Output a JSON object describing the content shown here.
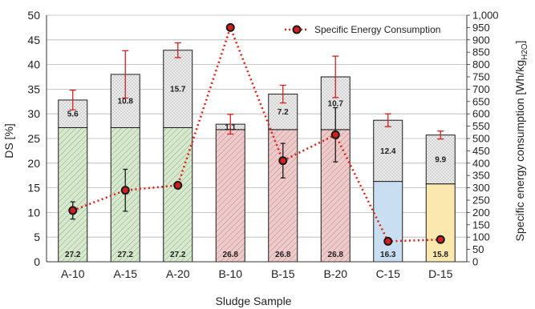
{
  "chart_data": {
    "type": "bar",
    "categories": [
      "A-10",
      "A-15",
      "A-20",
      "B-10",
      "B-15",
      "B-20",
      "C-15",
      "D-15"
    ],
    "series": [
      {
        "values": [
          27.2,
          27.2,
          27.2,
          26.8,
          26.8,
          26.8,
          16.3,
          15.8
        ],
        "labels": [
          "27.2",
          "27.2",
          "27.2",
          "26.8",
          "26.8",
          "26.8",
          "16.3",
          "15.8"
        ],
        "colors": [
          "#d5eacb",
          "#d5eacb",
          "#d5eacb",
          "#f2c9c9",
          "#f2c9c9",
          "#f2c9c9",
          "#c9dff1",
          "#fbe8ae"
        ]
      },
      {
        "values": [
          5.6,
          10.8,
          15.7,
          1.1,
          7.2,
          10.7,
          12.4,
          9.9
        ],
        "labels": [
          "5.6",
          "10.8",
          "15.7",
          "1.1",
          "7.2",
          "10.7",
          "12.4",
          "9.9"
        ],
        "color": "#ececec",
        "error_plus": [
          2.0,
          4.8,
          1.5,
          2.0,
          1.8,
          4.2,
          1.3,
          0.8
        ],
        "error_minus": [
          2.0,
          4.8,
          1.5,
          2.0,
          1.8,
          4.2,
          1.3,
          0.8
        ]
      }
    ],
    "line_series": {
      "name": "Specific Energy Consumption",
      "axis": "right",
      "values": [
        208,
        290,
        310,
        950,
        410,
        515,
        83,
        90
      ],
      "error": [
        35,
        85,
        0,
        0,
        70,
        110,
        0,
        0
      ],
      "color": "#e32219"
    },
    "xlabel": "Sludge Sample",
    "ylabel": "DS [%]",
    "y2label": "Specific energy consumption [Wh/kg",
    "y2label_sub": "H2O",
    "y2label_end": "]",
    "ylim": [
      0,
      50
    ],
    "y2lim": [
      0,
      1000
    ],
    "yticks": [
      "0",
      "5",
      "10",
      "15",
      "20",
      "25",
      "30",
      "35",
      "40",
      "45",
      "50"
    ],
    "y2ticks": [
      "0",
      "50",
      "100",
      "150",
      "200",
      "250",
      "300",
      "350",
      "400",
      "450",
      "500",
      "550",
      "600",
      "650",
      "700",
      "750",
      "800",
      "850",
      "900",
      "950",
      "1,000"
    ],
    "grid": true,
    "legend_position": "top-right"
  }
}
